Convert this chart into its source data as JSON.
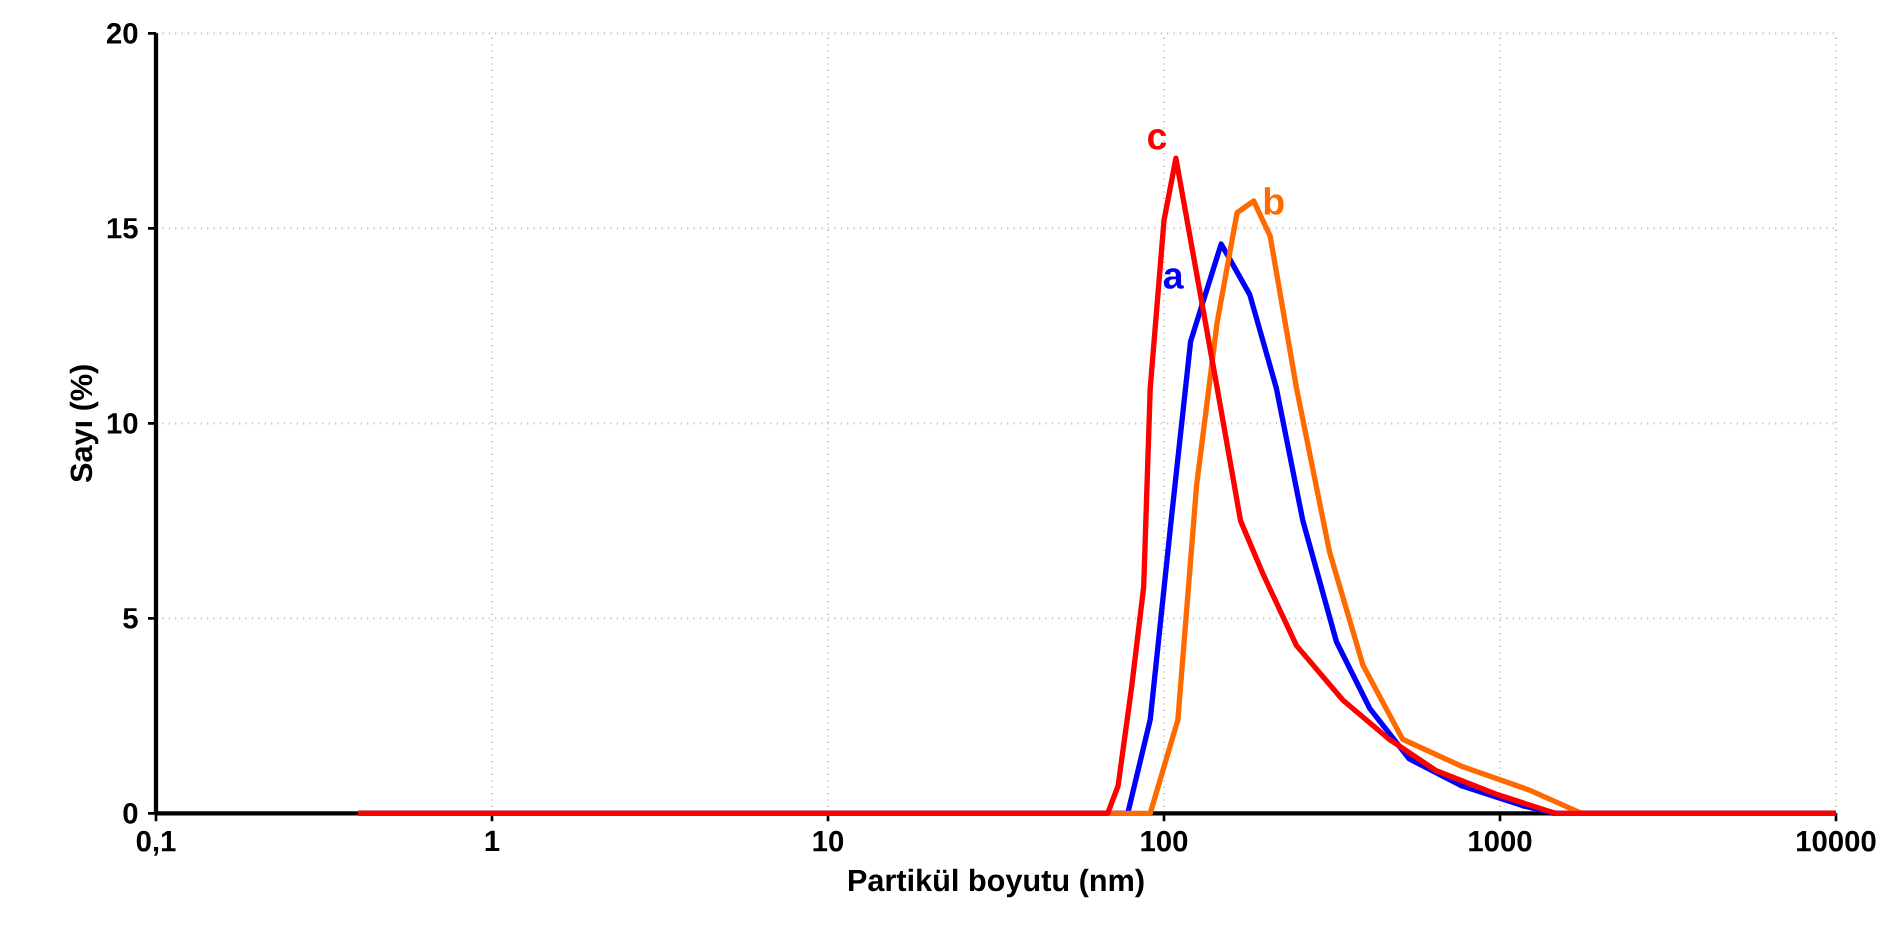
{
  "chart_data": {
    "type": "line",
    "xlabel": "Partikül boyutu (nm)",
    "ylabel": "Sayı (%)",
    "log": "x",
    "grid": true,
    "xlim": [
      0.1,
      10000
    ],
    "ylim": [
      0,
      20
    ],
    "xticks": [
      {
        "value": 0.1,
        "label": "0,1"
      },
      1,
      10,
      100,
      1000,
      10000
    ],
    "yticks": [
      0,
      5,
      10,
      15,
      20
    ],
    "series": [
      {
        "name": "a",
        "color": "#0000ff",
        "x": [
          0.4,
          78,
          91,
          105,
          120,
          148,
          180,
          216,
          259,
          326,
          409,
          536,
          772,
          1165,
          1460,
          10000
        ],
        "values": [
          0,
          0,
          2.4,
          7.5,
          12.1,
          14.6,
          13.3,
          10.9,
          7.5,
          4.4,
          2.7,
          1.4,
          0.7,
          0.2,
          0,
          0
        ]
      },
      {
        "name": "b",
        "color": "#ff6a00",
        "x": [
          0.4,
          91,
          110,
          125,
          144,
          165,
          185,
          207,
          248,
          311,
          391,
          513,
          772,
          1219,
          1750,
          10000
        ],
        "values": [
          0,
          0,
          2.4,
          8.4,
          12.6,
          15.4,
          15.7,
          14.8,
          10.9,
          6.7,
          3.8,
          1.9,
          1.2,
          0.6,
          0,
          0
        ]
      },
      {
        "name": "c",
        "color": "#ff0000",
        "x": [
          0.4,
          68,
          73,
          80,
          87,
          91,
          100,
          108.5,
          144,
          169,
          198,
          248,
          341,
          468,
          644,
          967,
          1460,
          10000
        ],
        "values": [
          0,
          0,
          0.7,
          3.2,
          5.8,
          10.9,
          15.2,
          16.8,
          10.9,
          7.5,
          6.1,
          4.3,
          2.9,
          1.9,
          1.1,
          0.5,
          0,
          0
        ]
      }
    ]
  }
}
